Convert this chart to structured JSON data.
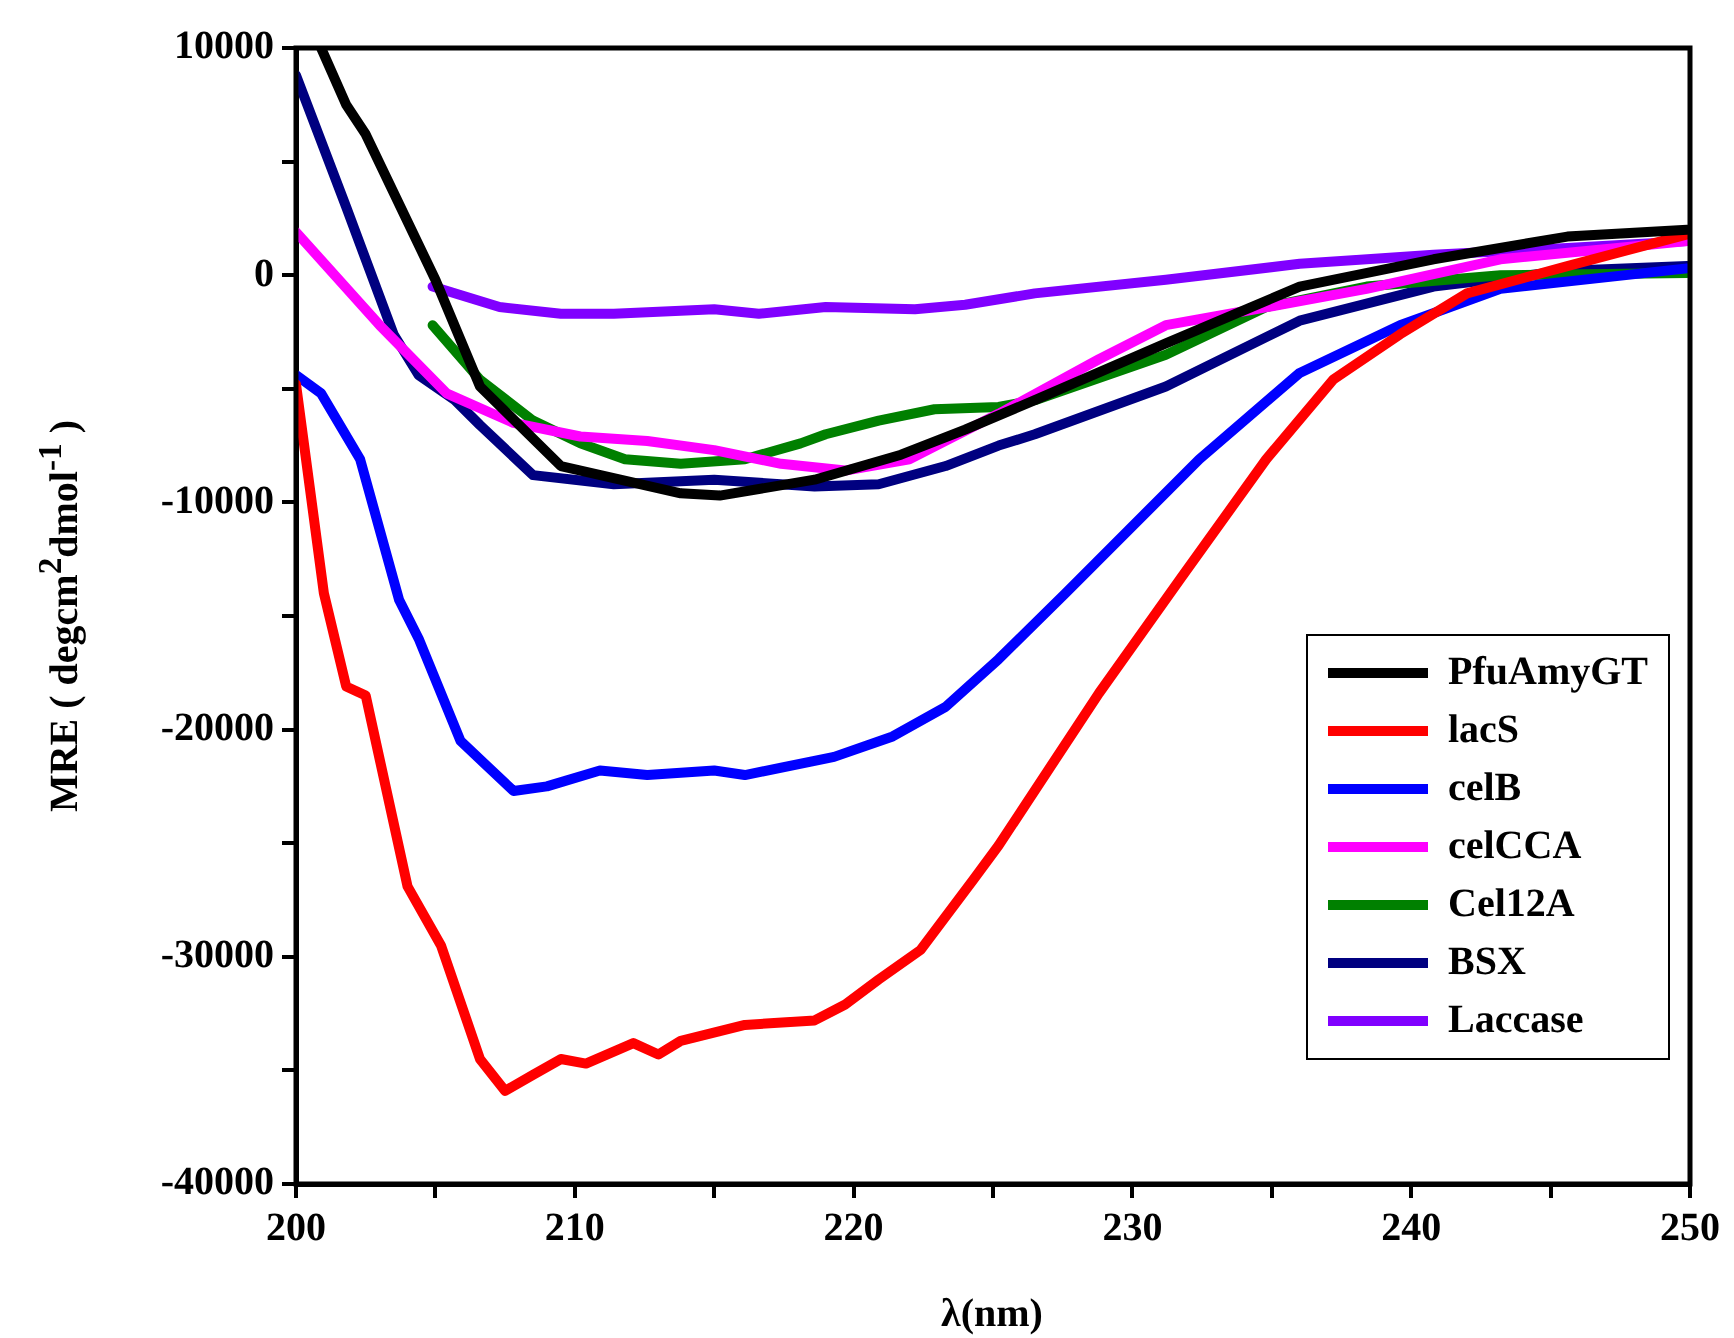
{
  "chart_data": {
    "type": "line",
    "xlabel": "λ(nm)",
    "ylabel": "MRE ( degcm$^{2}$dmol$^{-1}$ )",
    "xlim": [
      200,
      250
    ],
    "xticks": [
      200,
      {
        "value": 205,
        "label": null
      },
      210,
      {
        "value": 215,
        "label": null
      },
      220,
      {
        "value": 225,
        "label": null
      },
      230,
      {
        "value": 235,
        "label": null
      },
      240,
      {
        "value": 245,
        "label": null
      },
      250
    ],
    "ylim": [
      -40000,
      10000
    ],
    "yticks": [
      -40000,
      {
        "value": -35000,
        "label": null
      },
      -30000,
      {
        "value": -25000,
        "label": null
      },
      -20000,
      {
        "value": -15000,
        "label": null
      },
      -10000,
      {
        "value": -5000,
        "label": null
      },
      0,
      {
        "value": 5000,
        "label": null
      },
      10000
    ],
    "grid": false,
    "legend": "bottom right",
    "marker": "none",
    "line_style": "solid",
    "series": [
      {
        "name": "PfuAmyGT",
        "color": "#000000",
        "x": [
          200.9,
          201.8,
          202.5,
          205,
          206.6,
          209.5,
          213.8,
          215.2,
          218.6,
          221.7,
          224,
          226.5,
          231.2,
          236,
          240.8,
          245.6,
          249.9
        ],
        "values": [
          10000,
          7500,
          6200,
          -200,
          -4900,
          -8400,
          -9600,
          -9700,
          -9000,
          -7900,
          -6800,
          -5500,
          -3000,
          -500,
          700,
          1700,
          2000
        ]
      },
      {
        "name": "lacS",
        "color": "#ff0000",
        "x": [
          200,
          201,
          201.8,
          202.5,
          204,
          205.2,
          206.6,
          207.5,
          208.5,
          209.5,
          210.4,
          212.1,
          213,
          213.8,
          216.1,
          218.6,
          219.7,
          220.9,
          222.4,
          224.3,
          225.2,
          228.8,
          231.7,
          234.8,
          237.2,
          239.6,
          242,
          245.6,
          249.9
        ],
        "values": [
          -4800,
          -14000,
          -18100,
          -18500,
          -26900,
          -29500,
          -34500,
          -35900,
          -35200,
          -34500,
          -34700,
          -33800,
          -34300,
          -33700,
          -33000,
          -32800,
          -32100,
          -31000,
          -29700,
          -26600,
          -25100,
          -18400,
          -13400,
          -8100,
          -4600,
          -2600,
          -800,
          400,
          1800
        ]
      },
      {
        "name": "celB",
        "color": "#0000ff",
        "x": [
          200,
          200.9,
          202.3,
          203.7,
          204.4,
          205.9,
          207.8,
          209,
          210.9,
          212.6,
          215,
          216.1,
          219.3,
          221.4,
          223.3,
          225.2,
          227.6,
          232.4,
          236,
          239.6,
          243.2,
          249.9
        ],
        "values": [
          -4400,
          -5200,
          -8100,
          -14300,
          -16000,
          -20500,
          -22700,
          -22500,
          -21800,
          -22000,
          -21800,
          -22000,
          -21200,
          -20300,
          -19000,
          -16900,
          -14000,
          -8100,
          -4300,
          -2200,
          -600,
          300
        ]
      },
      {
        "name": "celCCA",
        "color": "#ff00ff",
        "x": [
          200,
          203,
          205.4,
          207.8,
          210.2,
          212.6,
          215,
          217.4,
          219.7,
          222,
          225.2,
          228.8,
          231.2,
          234.4,
          238.4,
          243.2,
          249.9
        ],
        "values": [
          1900,
          -2200,
          -5200,
          -6500,
          -7100,
          -7300,
          -7700,
          -8300,
          -8600,
          -8100,
          -6100,
          -3700,
          -2200,
          -1500,
          -600,
          700,
          1500
        ]
      },
      {
        "name": "Cel12A",
        "color": "#008000",
        "x": [
          204.9,
          206.6,
          208.5,
          210.2,
          211.8,
          213.8,
          216.1,
          218.1,
          219,
          220.9,
          222.9,
          225.2,
          226.5,
          231.2,
          234.8,
          238.4,
          243.2,
          249.9
        ],
        "values": [
          -2200,
          -4600,
          -6400,
          -7400,
          -8100,
          -8300,
          -8100,
          -7400,
          -7000,
          -6400,
          -5900,
          -5800,
          -5500,
          -3500,
          -1400,
          -500,
          0,
          100
        ]
      },
      {
        "name": "BSX",
        "color": "#000080",
        "x": [
          200,
          201.8,
          203.5,
          204.4,
          205.7,
          206.6,
          208.5,
          211.4,
          215,
          218.6,
          220.9,
          223.3,
          225.2,
          226.5,
          231.2,
          236,
          240.8,
          245.6,
          249.9
        ],
        "values": [
          8800,
          3000,
          -2600,
          -4400,
          -5500,
          -6600,
          -8800,
          -9200,
          -9000,
          -9300,
          -9200,
          -8400,
          -7500,
          -7000,
          -4900,
          -2000,
          -500,
          200,
          400
        ]
      },
      {
        "name": "Laccase",
        "color": "#8000ff",
        "x": [
          204.9,
          207.3,
          209.5,
          211.4,
          215,
          216.6,
          219,
          222.2,
          224,
          226.5,
          231.2,
          236,
          240.8,
          245.6,
          249.9
        ],
        "values": [
          -500,
          -1400,
          -1700,
          -1700,
          -1500,
          -1700,
          -1400,
          -1500,
          -1300,
          -800,
          -200,
          500,
          900,
          1200,
          1500
        ]
      }
    ]
  }
}
